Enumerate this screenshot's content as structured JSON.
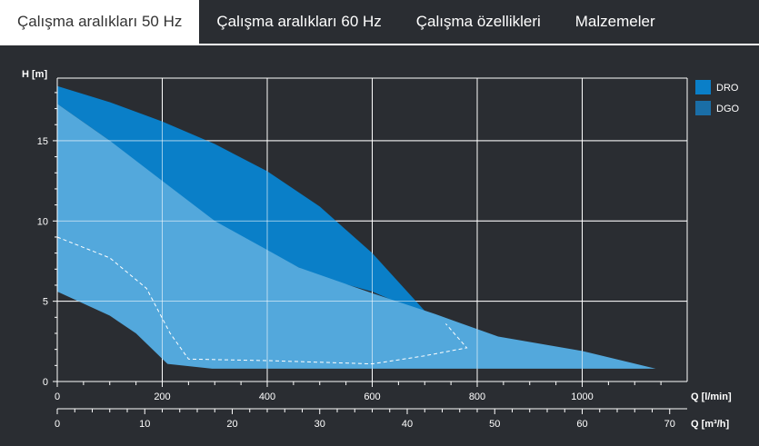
{
  "tabs": [
    {
      "label": "Çalışma aralıkları 50 Hz",
      "active": true
    },
    {
      "label": "Çalışma aralıkları 60 Hz",
      "active": false
    },
    {
      "label": "Çalışma özellikleri",
      "active": false
    },
    {
      "label": "Malzemeler",
      "active": false
    }
  ],
  "colors": {
    "background": "#2a2d32",
    "grid": "#ffffff",
    "dro": "#0a7fc8",
    "dgo": "#1a6ea7",
    "light_area": "#53a8dc",
    "dashed": "#ffffff"
  },
  "chart_data": {
    "type": "area",
    "ylabel": "H [m]",
    "xlabel": "Q [l/min]",
    "x2label": "Q [m³/h]",
    "xlim": [
      0,
      1200
    ],
    "ylim": [
      0,
      18.9
    ],
    "x_ticks": [
      "0",
      "200",
      "400",
      "600",
      "800",
      "1000"
    ],
    "x2_ticks": [
      "0",
      "10",
      "20",
      "30",
      "40",
      "50",
      "60",
      "70"
    ],
    "y_ticks": [
      "0",
      "5",
      "10",
      "15"
    ],
    "legend": [
      "DRO",
      "DGO"
    ],
    "legend_position": "right",
    "grid": true,
    "series": [
      {
        "name": "DRO",
        "color": "#0a7fc8",
        "points": [
          [
            0,
            18.4
          ],
          [
            100,
            17.4
          ],
          [
            200,
            16.2
          ],
          [
            300,
            14.8
          ],
          [
            400,
            13.1
          ],
          [
            500,
            10.9
          ],
          [
            600,
            8.0
          ],
          [
            700,
            4.4
          ],
          [
            720,
            4.0
          ],
          [
            730,
            3.8
          ],
          [
            740,
            3.6
          ],
          [
            755,
            3.5
          ],
          [
            760,
            3.2
          ],
          [
            730,
            3.6
          ],
          [
            700,
            4.3
          ],
          [
            650,
            4.9
          ],
          [
            600,
            5.6
          ],
          [
            500,
            6.5
          ],
          [
            460,
            7.1
          ],
          [
            400,
            8.1
          ],
          [
            300,
            9.8
          ],
          [
            250,
            10.2
          ],
          [
            200,
            12.0
          ],
          [
            100,
            15.0
          ],
          [
            0,
            17.3
          ]
        ]
      },
      {
        "name": "DGO",
        "color": "#53a8dc",
        "points": [
          [
            0,
            17.3
          ],
          [
            100,
            15.0
          ],
          [
            200,
            12.5
          ],
          [
            300,
            10.0
          ],
          [
            400,
            8.2
          ],
          [
            460,
            7.1
          ],
          [
            600,
            5.5
          ],
          [
            720,
            4.2
          ],
          [
            840,
            2.8
          ],
          [
            1000,
            1.9
          ],
          [
            1140,
            0.8
          ],
          [
            295,
            0.8
          ],
          [
            210,
            1.1
          ],
          [
            150,
            3.0
          ],
          [
            100,
            4.1
          ],
          [
            0,
            5.6
          ]
        ]
      }
    ],
    "dashed_curve": [
      [
        0,
        9.0
      ],
      [
        100,
        7.7
      ],
      [
        170,
        5.8
      ],
      [
        215,
        3.0
      ],
      [
        250,
        1.4
      ],
      [
        400,
        1.3
      ],
      [
        600,
        1.1
      ],
      [
        700,
        1.6
      ],
      [
        780,
        2.1
      ],
      [
        740,
        3.6
      ]
    ]
  }
}
